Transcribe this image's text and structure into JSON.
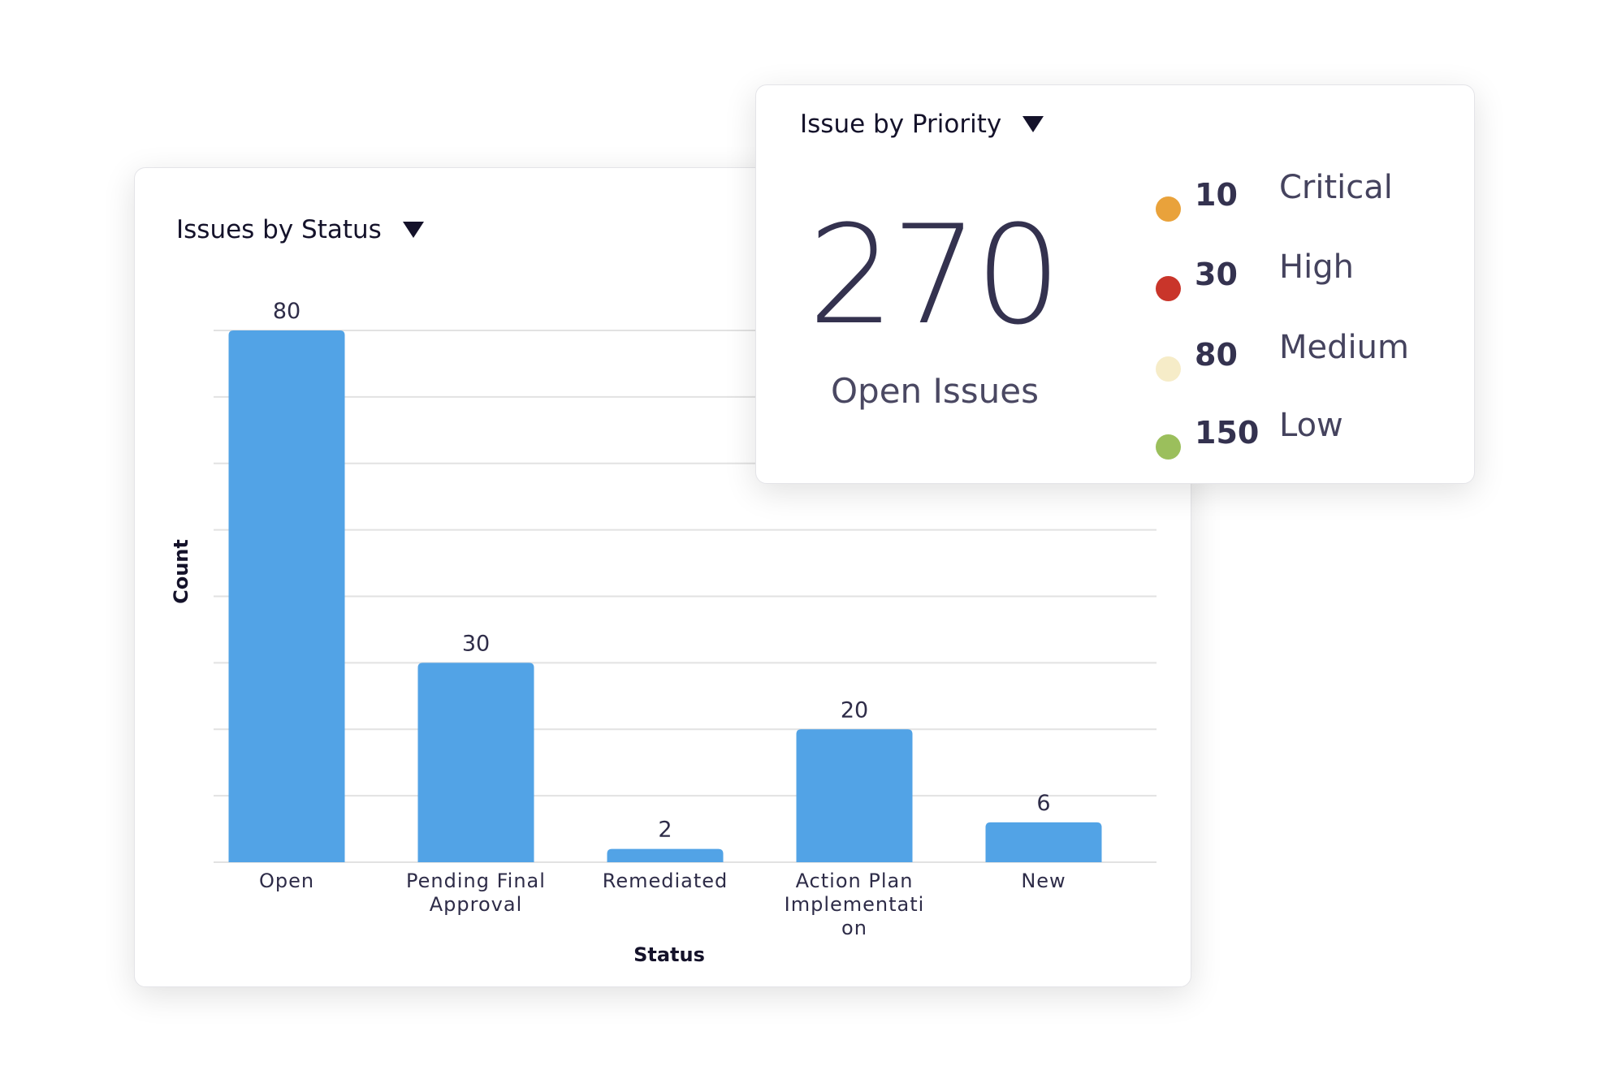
{
  "status_card": {
    "title": "Issues by Status"
  },
  "priority_card": {
    "title": "Issue by Priority",
    "total": "270",
    "total_label": "Open Issues",
    "items": [
      {
        "count": "10",
        "label": "Critical",
        "color": "#e9a23b"
      },
      {
        "count": "30",
        "label": "High",
        "color": "#c9352a"
      },
      {
        "count": "80",
        "label": "Medium",
        "color": "#f6ecc8"
      },
      {
        "count": "150",
        "label": "Low",
        "color": "#9bbf5c"
      }
    ]
  },
  "chart_data": {
    "type": "bar",
    "title": "Issues by Status",
    "categories": [
      "Open",
      "Pending Final Approval",
      "Remediated",
      "Action Plan Implementation",
      "New"
    ],
    "category_label_lines": [
      [
        "Open"
      ],
      [
        "Pending Final",
        "Approval"
      ],
      [
        "Remediated"
      ],
      [
        "Action Plan",
        "Implementati",
        "on"
      ],
      [
        "New"
      ]
    ],
    "values": [
      80,
      30,
      2,
      20,
      6
    ],
    "xlabel": "Status",
    "ylabel": "Count",
    "ylim": [
      0,
      80
    ],
    "grid_step": 10,
    "grid": true,
    "bar_color": "#52a3e6"
  }
}
